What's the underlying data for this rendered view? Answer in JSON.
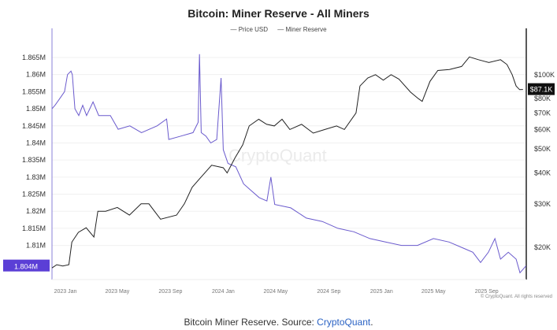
{
  "chart_data": {
    "type": "line",
    "title": "Bitcoin: Miner Reserve - All Miners",
    "legend": [
      "Price USD",
      "Miner Reserve"
    ],
    "legend_position": "top-center",
    "grid": true,
    "x_ticks": [
      "2023 Jan",
      "2023 May",
      "2023 Sep",
      "2024 Jan",
      "2024 May",
      "2024 Sep",
      "2025 Jan",
      "2025 May",
      "2025 Sep"
    ],
    "y_left": {
      "ticks": [
        "1.865M",
        "1.86M",
        "1.855M",
        "1.85M",
        "1.845M",
        "1.84M",
        "1.835M",
        "1.83M",
        "1.825M",
        "1.82M",
        "1.815M",
        "1.81M"
      ],
      "tick_values": [
        1.865,
        1.86,
        1.855,
        1.85,
        1.845,
        1.84,
        1.835,
        1.83,
        1.825,
        1.82,
        1.815,
        1.81
      ],
      "range": [
        1.8,
        1.8703
      ],
      "current_label": "1.804M"
    },
    "y_right": {
      "scale": "log",
      "ticks": [
        "$100K",
        "$80K",
        "$70K",
        "$60K",
        "$50K",
        "$40K",
        "$30K",
        "$20K"
      ],
      "tick_values": [
        100,
        80,
        70,
        60,
        50,
        40,
        30,
        20
      ],
      "range": [
        14.8,
        139
      ],
      "current_label": "$87.1K"
    },
    "series": [
      {
        "name": "Miner Reserve",
        "axis": "left",
        "color": "#6a5acd",
        "unit": "M BTC",
        "points": [
          [
            "2022-12-01",
            1.85
          ],
          [
            "2022-12-08",
            1.851
          ],
          [
            "2022-12-19",
            1.853
          ],
          [
            "2022-12-30",
            1.855
          ],
          [
            "2023-01-06",
            1.86
          ],
          [
            "2023-01-14",
            1.861
          ],
          [
            "2023-01-17",
            1.86
          ],
          [
            "2023-01-23",
            1.85
          ],
          [
            "2023-02-01",
            1.848
          ],
          [
            "2023-02-10",
            1.851
          ],
          [
            "2023-02-19",
            1.848
          ],
          [
            "2023-03-06",
            1.852
          ],
          [
            "2023-03-19",
            1.848
          ],
          [
            "2023-04-15",
            1.848
          ],
          [
            "2023-04-24",
            1.846
          ],
          [
            "2023-05-03",
            1.844
          ],
          [
            "2023-05-30",
            1.845
          ],
          [
            "2023-06-26",
            1.843
          ],
          [
            "2023-08-01",
            1.845
          ],
          [
            "2023-08-23",
            1.847
          ],
          [
            "2023-08-28",
            1.841
          ],
          [
            "2023-09-25",
            1.842
          ],
          [
            "2023-10-23",
            1.843
          ],
          [
            "2023-11-04",
            1.846
          ],
          [
            "2023-11-07",
            1.866
          ],
          [
            "2023-11-11",
            1.843
          ],
          [
            "2023-11-22",
            1.842
          ],
          [
            "2023-12-03",
            1.84
          ],
          [
            "2023-12-17",
            1.841
          ],
          [
            "2023-12-27",
            1.859
          ],
          [
            "2024-01-01",
            1.838
          ],
          [
            "2024-01-12",
            1.834
          ],
          [
            "2024-01-30",
            1.833
          ],
          [
            "2024-02-17",
            1.828
          ],
          [
            "2024-03-06",
            1.826
          ],
          [
            "2024-03-24",
            1.824
          ],
          [
            "2024-04-11",
            1.823
          ],
          [
            "2024-04-20",
            1.83
          ],
          [
            "2024-04-29",
            1.822
          ],
          [
            "2024-06-05",
            1.821
          ],
          [
            "2024-07-11",
            1.818
          ],
          [
            "2024-08-17",
            1.817
          ],
          [
            "2024-09-22",
            1.815
          ],
          [
            "2024-10-29",
            1.814
          ],
          [
            "2024-12-05",
            1.812
          ],
          [
            "2025-01-10",
            1.811
          ],
          [
            "2025-02-16",
            1.81
          ],
          [
            "2025-03-25",
            1.81
          ],
          [
            "2025-05-01",
            1.812
          ],
          [
            "2025-06-06",
            1.811
          ],
          [
            "2025-07-13",
            1.809
          ],
          [
            "2025-07-31",
            1.808
          ],
          [
            "2025-08-18",
            1.805
          ],
          [
            "2025-09-05",
            1.808
          ],
          [
            "2025-09-20",
            1.812
          ],
          [
            "2025-10-03",
            1.806
          ],
          [
            "2025-10-21",
            1.808
          ],
          [
            "2025-11-08",
            1.806
          ],
          [
            "2025-11-17",
            1.802
          ],
          [
            "2025-12-01",
            1.804
          ]
        ]
      },
      {
        "name": "Price USD",
        "axis": "right",
        "color": "#222222",
        "unit": "K USD",
        "points": [
          [
            "2022-12-01",
            16.5
          ],
          [
            "2022-12-12",
            17.0
          ],
          [
            "2022-12-26",
            16.8
          ],
          [
            "2023-01-09",
            17.0
          ],
          [
            "2023-01-16",
            21.0
          ],
          [
            "2023-01-31",
            23.0
          ],
          [
            "2023-02-18",
            24.0
          ],
          [
            "2023-03-08",
            22.0
          ],
          [
            "2023-03-17",
            28.0
          ],
          [
            "2023-04-04",
            28.0
          ],
          [
            "2023-05-01",
            29.0
          ],
          [
            "2023-05-29",
            27.0
          ],
          [
            "2023-06-25",
            30.0
          ],
          [
            "2023-07-13",
            30.0
          ],
          [
            "2023-08-09",
            26.0
          ],
          [
            "2023-09-15",
            27.0
          ],
          [
            "2023-10-03",
            30.0
          ],
          [
            "2023-10-21",
            35.0
          ],
          [
            "2023-11-08",
            38.0
          ],
          [
            "2023-12-05",
            43.0
          ],
          [
            "2024-01-01",
            42.0
          ],
          [
            "2024-01-10",
            40.0
          ],
          [
            "2024-01-28",
            46.0
          ],
          [
            "2024-02-15",
            52.0
          ],
          [
            "2024-03-01",
            62.0
          ],
          [
            "2024-03-23",
            66.0
          ],
          [
            "2024-04-10",
            63.0
          ],
          [
            "2024-04-28",
            62.0
          ],
          [
            "2024-05-16",
            66.0
          ],
          [
            "2024-06-03",
            60.0
          ],
          [
            "2024-06-30",
            63.0
          ],
          [
            "2024-07-27",
            58.0
          ],
          [
            "2024-08-23",
            60.0
          ],
          [
            "2024-09-19",
            62.0
          ],
          [
            "2024-10-07",
            60.0
          ],
          [
            "2024-11-03",
            70.0
          ],
          [
            "2024-11-12",
            90.0
          ],
          [
            "2024-11-30",
            97.0
          ],
          [
            "2024-12-18",
            100.0
          ],
          [
            "2025-01-05",
            95.0
          ],
          [
            "2025-01-23",
            100.0
          ],
          [
            "2025-02-10",
            96.0
          ],
          [
            "2025-03-09",
            85.0
          ],
          [
            "2025-03-27",
            80.0
          ],
          [
            "2025-04-05",
            78.0
          ],
          [
            "2025-04-23",
            94.0
          ],
          [
            "2025-05-11",
            104.0
          ],
          [
            "2025-06-07",
            105.0
          ],
          [
            "2025-07-05",
            108.0
          ],
          [
            "2025-07-23",
            118.0
          ],
          [
            "2025-08-13",
            115.0
          ],
          [
            "2025-09-06",
            112.0
          ],
          [
            "2025-10-03",
            115.0
          ],
          [
            "2025-10-18",
            110.0
          ],
          [
            "2025-10-30",
            100.0
          ],
          [
            "2025-11-08",
            90.0
          ],
          [
            "2025-11-16",
            87.0
          ],
          [
            "2025-11-24",
            87.1
          ]
        ]
      }
    ],
    "watermark": "CryptoQuant",
    "copyright": "© CryptoQuant. All rights reserved"
  },
  "caption": {
    "text": "Bitcoin Miner Reserve. Source: ",
    "source": "CryptoQuant",
    "end": "."
  }
}
